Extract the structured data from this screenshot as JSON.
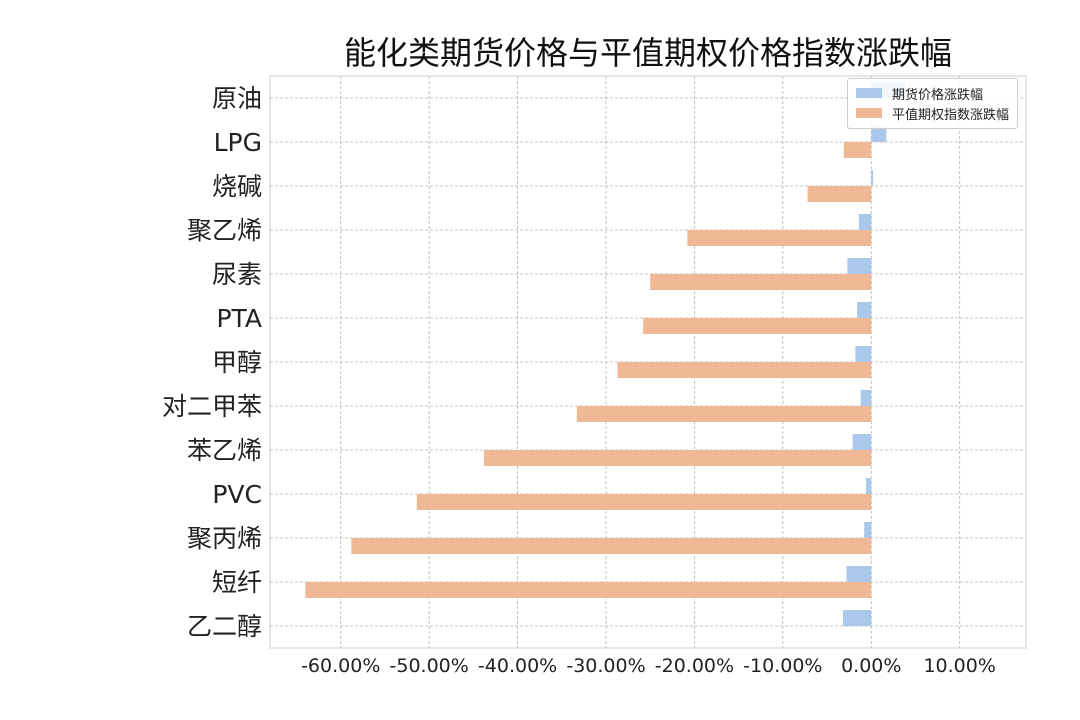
{
  "chart_data": {
    "type": "bar",
    "orientation": "horizontal",
    "title": "能化类期货价格与平值期权价格指数涨跌幅",
    "categories": [
      "原油",
      "LPG",
      "烧碱",
      "聚乙烯",
      "尿素",
      "PTA",
      "甲醇",
      "对二甲苯",
      "苯乙烯",
      "PVC",
      "聚丙烯",
      "短纤",
      "乙二醇"
    ],
    "series": [
      {
        "name": "期货价格涨跌幅",
        "color": "#a9c8ec",
        "values": [
          3.8,
          1.7,
          0.2,
          -1.4,
          -2.7,
          -1.6,
          -1.8,
          -1.2,
          -2.1,
          -0.6,
          -0.8,
          -2.8,
          -3.2
        ]
      },
      {
        "name": "平值期权指数涨跌幅",
        "color": "#f0b895",
        "values": [
          0.0,
          -3.1,
          -7.2,
          -20.8,
          -25.0,
          -25.8,
          -28.7,
          -33.3,
          -43.8,
          -51.4,
          -58.8,
          -64.0,
          0.0
        ]
      }
    ],
    "xlim": [
      -68,
      17.5
    ],
    "xticks": [
      -60,
      -50,
      -40,
      -30,
      -20,
      -10,
      0,
      10
    ],
    "xtick_labels": [
      "-60.00%",
      "-50.00%",
      "-40.00%",
      "-30.00%",
      "-20.00%",
      "-10.00%",
      "0.00%",
      "10.00%"
    ],
    "grid": true,
    "legend_position": "top-right",
    "xlabel": "",
    "ylabel": ""
  }
}
